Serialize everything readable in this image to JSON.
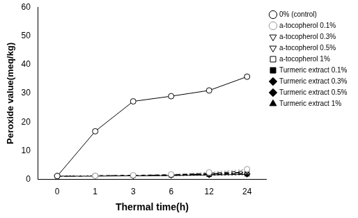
{
  "chart_data": {
    "type": "line",
    "x_label": "Thermal time(h)",
    "y_label": "Peroxide value(meq/kg)",
    "categories": [
      "0",
      "1",
      "3",
      "6",
      "12",
      "24"
    ],
    "ylim": [
      0,
      60
    ],
    "yticks": [
      0,
      10,
      20,
      30,
      40,
      50,
      60
    ],
    "grid": false,
    "legend": "right",
    "series": [
      {
        "name": "0% (control)",
        "color": "#000000",
        "marker": "circle-open",
        "line_style": "solid",
        "values": [
          1.2,
          16.8,
          27.2,
          29.0,
          31.0,
          35.8
        ]
      },
      {
        "name": "a-tocopherol 0.1%",
        "color": "#999999",
        "marker": "circle-open",
        "line_style": "dotted",
        "values": [
          1.2,
          1.3,
          1.5,
          1.8,
          2.5,
          3.6
        ]
      },
      {
        "name": "a-tocopherol 0.3%",
        "color": "#000000",
        "marker": "triangle-down-open",
        "line_style": "dashed",
        "values": [
          1.2,
          1.3,
          1.5,
          1.7,
          2.2,
          3.0
        ]
      },
      {
        "name": "a-tocopherol 0.5%",
        "color": "#000000",
        "marker": "triangle-down-open",
        "line_style": "dashdot",
        "values": [
          1.2,
          1.3,
          1.4,
          1.6,
          2.0,
          2.6
        ]
      },
      {
        "name": "a-tocopherol 1%",
        "color": "#000000",
        "marker": "square-open",
        "line_style": "dashdot",
        "values": [
          1.2,
          1.3,
          1.4,
          1.5,
          1.9,
          2.4
        ]
      },
      {
        "name": "Turmeric extract 0.1%",
        "color": "#000000",
        "marker": "square",
        "line_style": "dashed",
        "values": [
          1.2,
          1.3,
          1.4,
          1.6,
          1.8,
          2.2
        ]
      },
      {
        "name": "Turmeric extract 0.3%",
        "color": "#000000",
        "marker": "diamond",
        "line_style": "dashed",
        "values": [
          1.2,
          1.3,
          1.3,
          1.5,
          1.7,
          2.0
        ]
      },
      {
        "name": "Turmeric extract 0.5%",
        "color": "#000000",
        "marker": "diamond",
        "line_style": "solid",
        "values": [
          1.2,
          1.2,
          1.3,
          1.4,
          1.6,
          1.8
        ]
      },
      {
        "name": "Turmeric extract 1%",
        "color": "#000000",
        "marker": "triangle",
        "line_style": "dotted",
        "values": [
          1.2,
          1.2,
          1.3,
          1.4,
          1.5,
          1.7
        ]
      }
    ]
  }
}
